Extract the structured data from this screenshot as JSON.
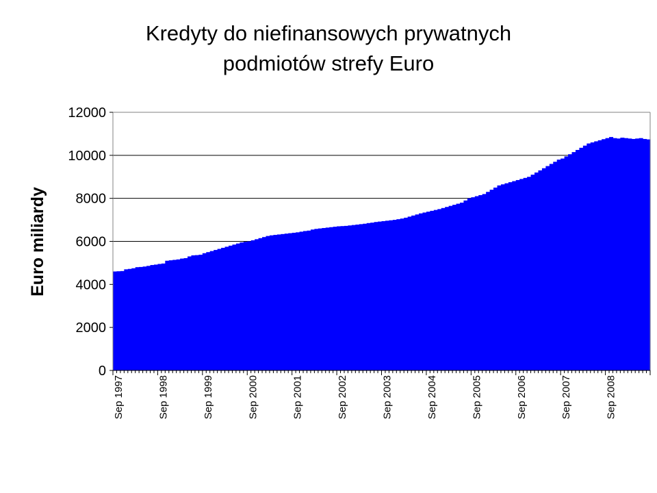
{
  "chart_data": {
    "type": "bar",
    "title": [
      "Kredyty do niefinansowych prywatnych",
      "podmiotów strefy Euro"
    ],
    "xlabel": "",
    "ylabel": "Euro miliardy",
    "ylim": [
      0,
      12000
    ],
    "yticks": [
      0,
      2000,
      4000,
      6000,
      8000,
      10000,
      12000
    ],
    "xtick_labels": [
      "Sep 1997",
      "Sep 1998",
      "Sep 1999",
      "Sep 2000",
      "Sep 2001",
      "Sep 2002",
      "Sep 2003",
      "Sep 2004",
      "Sep 2005",
      "Sep 2006",
      "Sep 2007",
      "Sep 2008"
    ],
    "grid": "horizontal",
    "legend": "none",
    "color": "#0000ff",
    "frequency": "monthly",
    "start": "1997-09",
    "end": "2009-08",
    "values": [
      4600,
      4610,
      4620,
      4700,
      4720,
      4750,
      4800,
      4810,
      4830,
      4860,
      4900,
      4920,
      4950,
      4970,
      5100,
      5120,
      5140,
      5160,
      5200,
      5220,
      5300,
      5350,
      5360,
      5380,
      5450,
      5500,
      5550,
      5600,
      5650,
      5700,
      5750,
      5800,
      5850,
      5900,
      5950,
      5980,
      6000,
      6050,
      6100,
      6150,
      6200,
      6250,
      6280,
      6300,
      6320,
      6340,
      6360,
      6380,
      6400,
      6420,
      6450,
      6480,
      6500,
      6550,
      6580,
      6600,
      6620,
      6640,
      6660,
      6680,
      6700,
      6710,
      6720,
      6740,
      6760,
      6780,
      6800,
      6820,
      6850,
      6870,
      6900,
      6920,
      6940,
      6960,
      6980,
      7000,
      7030,
      7060,
      7100,
      7150,
      7200,
      7250,
      7300,
      7340,
      7380,
      7420,
      7460,
      7500,
      7550,
      7600,
      7650,
      7700,
      7750,
      7800,
      7900,
      8000,
      8050,
      8100,
      8150,
      8200,
      8300,
      8400,
      8500,
      8600,
      8650,
      8700,
      8750,
      8800,
      8850,
      8900,
      8950,
      9000,
      9100,
      9200,
      9300,
      9400,
      9500,
      9600,
      9700,
      9800,
      9850,
      9950,
      10050,
      10150,
      10250,
      10350,
      10450,
      10550,
      10600,
      10650,
      10700,
      10750,
      10800,
      10850,
      10800,
      10780,
      10820,
      10800,
      10780,
      10760,
      10780,
      10800,
      10760,
      10740
    ]
  }
}
